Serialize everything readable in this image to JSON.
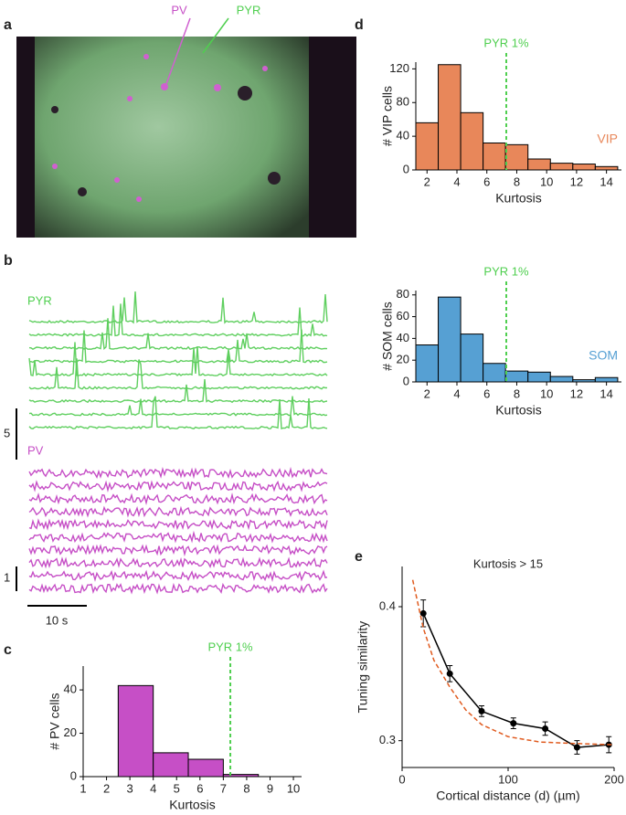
{
  "panels": {
    "a": "a",
    "b": "b",
    "c": "c",
    "d": "d",
    "e": "e",
    "image_labels": [
      "PV",
      "PYR"
    ],
    "trace_labels": [
      "PYR",
      "PV"
    ],
    "scale_labels": [
      "5",
      "1",
      "10 s"
    ]
  },
  "chart_data": [
    {
      "type": "histogram",
      "xlabel": "Kurtosis",
      "ylabel": "# PV cells",
      "color": "#c64fc6",
      "bins": [
        2.5,
        4,
        5.5,
        7,
        8.5
      ],
      "values": [
        42,
        11,
        8,
        1
      ],
      "xlim": [
        1,
        10.35
      ],
      "xticks": [
        1,
        2,
        3,
        4,
        5,
        6,
        7,
        8,
        9,
        10
      ],
      "ylim": [
        0,
        51
      ],
      "yticks": [
        0,
        20,
        40
      ],
      "annotation": {
        "label": "PYR 1%",
        "x": 7.3,
        "color": "#4fcf4f"
      }
    },
    {
      "type": "histogram",
      "xlabel": "Kurtosis",
      "ylabel": "# VIP cells",
      "color": "#e8875a",
      "label": "VIP",
      "bins": [
        1.25,
        2.75,
        4.25,
        5.75,
        7.25,
        8.75,
        10.25,
        11.75,
        13.25,
        14.75
      ],
      "values": [
        56,
        125,
        68,
        32,
        30,
        13,
        8,
        7,
        4
      ],
      "xlim": [
        1.25,
        15
      ],
      "xticks": [
        2,
        4,
        6,
        8,
        10,
        12,
        14
      ],
      "ylim": [
        0,
        128
      ],
      "yticks": [
        0,
        40,
        80,
        120
      ],
      "annotation": {
        "label": "PYR 1%",
        "x": 7.3,
        "color": "#4fcf4f"
      }
    },
    {
      "type": "histogram",
      "xlabel": "Kurtosis",
      "ylabel": "# SOM cells",
      "color": "#56a0d3",
      "label": "SOM",
      "bins": [
        1.25,
        2.75,
        4.25,
        5.75,
        7.25,
        8.75,
        10.25,
        11.75,
        13.25,
        14.75
      ],
      "values": [
        34,
        78,
        44,
        17,
        10,
        9,
        5,
        2,
        4
      ],
      "xlim": [
        1.25,
        15
      ],
      "xticks": [
        2,
        4,
        6,
        8,
        10,
        12,
        14
      ],
      "ylim": [
        0,
        84
      ],
      "yticks": [
        0,
        20,
        40,
        60,
        80
      ],
      "annotation": {
        "label": "PYR 1%",
        "x": 7.3,
        "color": "#4fcf4f"
      }
    },
    {
      "type": "line",
      "title": "Kurtosis > 15",
      "xlabel": "Cortical distance (d) (µm)",
      "ylabel": "Tuning similarity",
      "xlim": [
        0,
        200
      ],
      "xticks": [
        0,
        100,
        200
      ],
      "ylim": [
        0.28,
        0.43
      ],
      "yticks": [
        {
          "value": 0.3,
          "label": "0.3"
        },
        {
          "value": 0.4,
          "label": "0.4"
        }
      ],
      "series": [
        {
          "color": "#000000",
          "x": [
            20,
            45,
            75,
            105,
            135,
            165,
            195
          ],
          "values": [
            0.395,
            0.35,
            0.322,
            0.313,
            0.309,
            0.295,
            0.297
          ],
          "errors": [
            0.01,
            0.006,
            0.004,
            0.004,
            0.005,
            0.005,
            0.006
          ]
        },
        {
          "color": "#e05a1e",
          "dashed": true,
          "x": [
            10,
            20,
            30,
            45,
            60,
            75,
            100,
            130,
            160,
            200
          ],
          "values": [
            0.42,
            0.384,
            0.36,
            0.34,
            0.323,
            0.312,
            0.303,
            0.299,
            0.298,
            0.297
          ]
        }
      ]
    }
  ]
}
